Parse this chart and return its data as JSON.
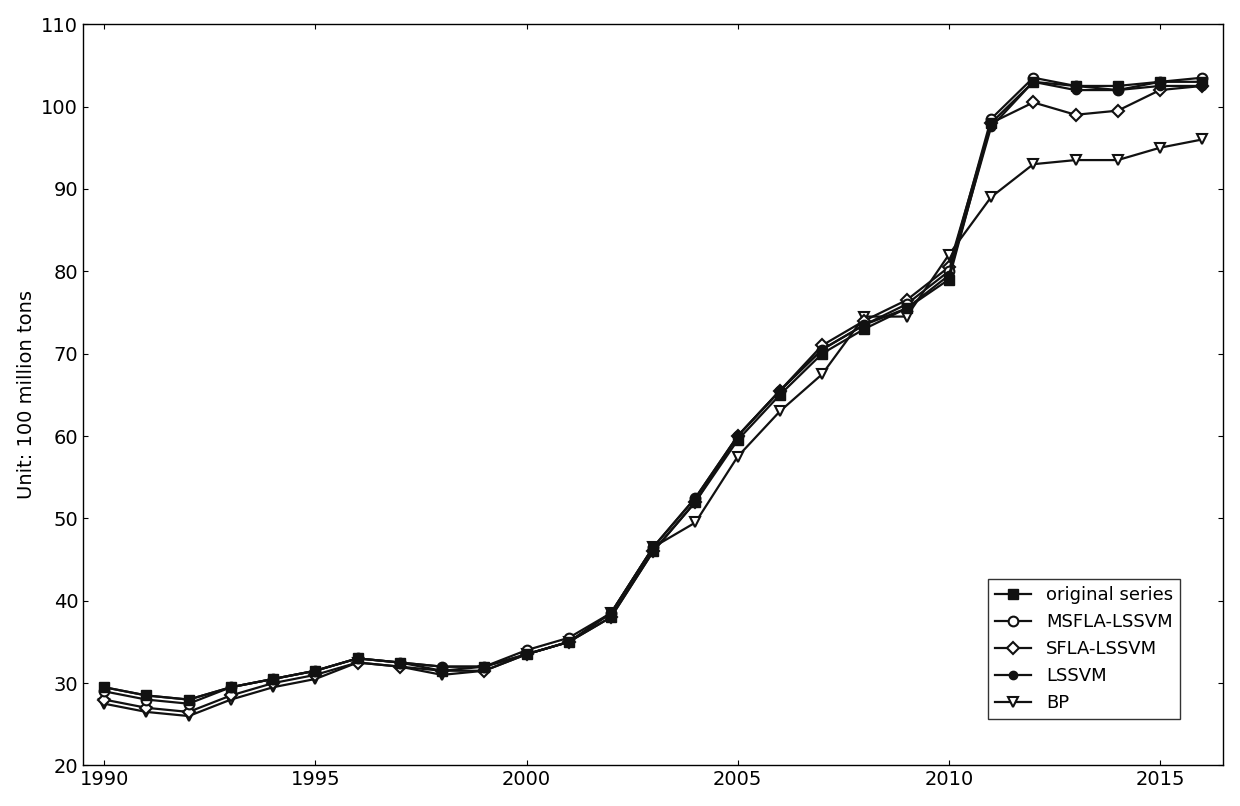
{
  "years": [
    1990,
    1991,
    1992,
    1993,
    1994,
    1995,
    1996,
    1997,
    1998,
    1999,
    2000,
    2001,
    2002,
    2003,
    2004,
    2005,
    2006,
    2007,
    2008,
    2009,
    2010,
    2011,
    2012,
    2013,
    2014,
    2015,
    2016
  ],
  "original": [
    29.5,
    28.5,
    28.0,
    29.5,
    30.5,
    31.5,
    33.0,
    32.5,
    31.5,
    32.0,
    33.5,
    35.0,
    38.0,
    46.0,
    52.0,
    59.5,
    65.0,
    70.0,
    73.0,
    75.5,
    79.0,
    98.0,
    103.0,
    102.5,
    102.5,
    103.0,
    103.0
  ],
  "msfla_lssvm": [
    29.0,
    28.0,
    27.5,
    29.5,
    30.5,
    31.5,
    33.0,
    32.5,
    32.0,
    32.0,
    34.0,
    35.5,
    38.5,
    46.5,
    52.5,
    60.0,
    65.5,
    70.5,
    73.5,
    76.0,
    80.0,
    98.5,
    103.5,
    102.5,
    102.0,
    103.0,
    103.5
  ],
  "sfla_lssvm": [
    28.0,
    27.0,
    26.5,
    28.5,
    30.0,
    31.0,
    32.5,
    32.0,
    31.5,
    31.5,
    33.5,
    35.0,
    38.0,
    46.0,
    52.0,
    60.0,
    65.5,
    71.0,
    74.0,
    76.5,
    80.5,
    98.0,
    100.5,
    99.0,
    99.5,
    102.0,
    102.5
  ],
  "lssvm": [
    29.5,
    28.5,
    28.0,
    29.5,
    30.5,
    31.5,
    33.0,
    32.5,
    32.0,
    32.0,
    33.5,
    35.0,
    38.5,
    46.5,
    52.5,
    60.0,
    65.5,
    70.5,
    73.5,
    75.5,
    79.5,
    97.5,
    103.0,
    102.0,
    102.0,
    102.5,
    102.5
  ],
  "bp": [
    27.5,
    26.5,
    26.0,
    28.0,
    29.5,
    30.5,
    32.5,
    32.0,
    31.0,
    31.5,
    33.5,
    35.0,
    38.5,
    46.5,
    49.5,
    57.5,
    63.0,
    67.5,
    74.5,
    74.5,
    82.0,
    89.0,
    93.0,
    93.5,
    93.5,
    95.0,
    96.0
  ],
  "ylabel": "Unit: 100 million tons",
  "ylim": [
    20,
    110
  ],
  "xlim_min": 1989.5,
  "xlim_max": 2016.5,
  "yticks": [
    20,
    30,
    40,
    50,
    60,
    70,
    80,
    90,
    100,
    110
  ],
  "xticks": [
    1990,
    1995,
    2000,
    2005,
    2010,
    2015
  ],
  "legend_labels": [
    "original series",
    "MSFLA-LSSVM",
    "SFLA-LSSVM",
    "LSSVM",
    "BP"
  ],
  "line_color": "#111111",
  "bg_color": "#ffffff",
  "fontsize": 14,
  "legend_fontsize": 13
}
